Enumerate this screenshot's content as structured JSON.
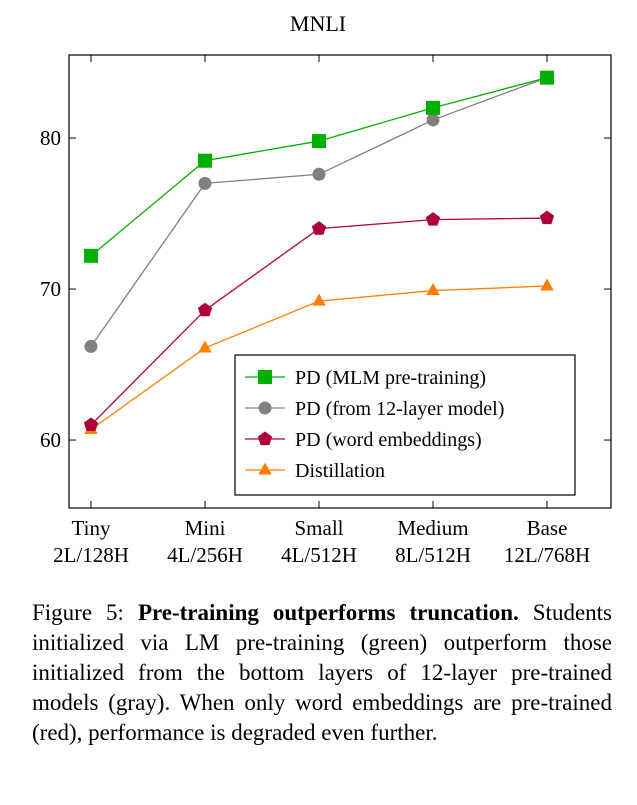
{
  "chart_data": {
    "type": "line",
    "title": "MNLI",
    "categories": [
      {
        "name": "Tiny",
        "config": "2L/128H"
      },
      {
        "name": "Mini",
        "config": "4L/256H"
      },
      {
        "name": "Small",
        "config": "4L/512H"
      },
      {
        "name": "Medium",
        "config": "8L/512H"
      },
      {
        "name": "Base",
        "config": "12L/768H"
      }
    ],
    "y_ticks": [
      "60",
      "70",
      "80"
    ],
    "ylim": [
      55.5,
      85.5
    ],
    "grid": false,
    "legend_position": "bottom-right",
    "series": [
      {
        "name": "PD (MLM pre-training)",
        "values": [
          72.2,
          78.5,
          79.8,
          82.0,
          84.0
        ],
        "color": "#00b000",
        "marker": "square"
      },
      {
        "name": "PD (from 12-layer model)",
        "values": [
          66.2,
          77.0,
          77.6,
          81.2,
          84.0
        ],
        "color": "#808080",
        "marker": "circle"
      },
      {
        "name": "PD (word embeddings)",
        "values": [
          61.0,
          68.6,
          74.0,
          74.6,
          74.7
        ],
        "color": "#b0003a",
        "marker": "pentagon"
      },
      {
        "name": "Distillation",
        "values": [
          60.7,
          66.1,
          69.2,
          69.9,
          70.2
        ],
        "color": "#ff8000",
        "marker": "triangle"
      }
    ]
  },
  "caption": {
    "label": "Figure 5:",
    "bold": "Pre-training outperforms truncation.",
    "text": "Students initialized via LM pre-training (green) outperform those initialized from the bottom layers of 12-layer pre-trained models (gray). When only word embeddings are pre-trained (red), performance is degraded even further."
  }
}
